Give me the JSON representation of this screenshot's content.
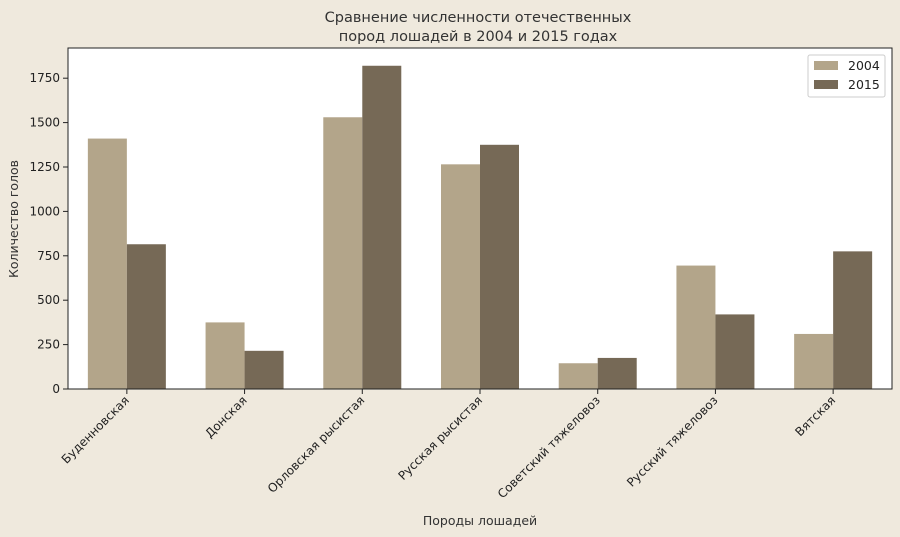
{
  "chart_data": {
    "type": "bar",
    "title_lines": [
      "Сравнение численности отечественных",
      "пород лошадей в 2004 и 2015 годах"
    ],
    "xlabel": "Породы лошадей",
    "ylabel": "Количество голов",
    "categories": [
      "Буденновская",
      "Донская",
      "Орловская рысистая",
      "Русская рысистая",
      "Советский тяжеловоз",
      "Русский тяжеловоз",
      "Вятская"
    ],
    "series": [
      {
        "name": "2004",
        "color": "#b3a58a",
        "values": [
          1410,
          375,
          1530,
          1265,
          145,
          695,
          310
        ]
      },
      {
        "name": "2015",
        "color": "#766956",
        "values": [
          815,
          215,
          1820,
          1375,
          175,
          420,
          775
        ]
      }
    ],
    "ylim": [
      0,
      1920
    ],
    "yticks": [
      0,
      250,
      500,
      750,
      1000,
      1250,
      1500,
      1750
    ],
    "legend_position": "top-right",
    "grid": false,
    "plot_background": "#ffffff",
    "page_background": "#efe9dd"
  }
}
